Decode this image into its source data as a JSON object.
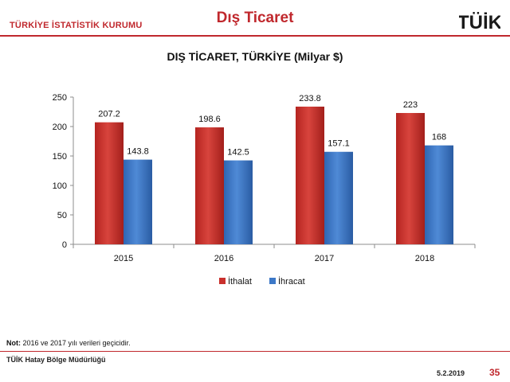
{
  "header": {
    "organization": "TÜRKİYE İSTATİSTİK KURUMU",
    "title": "Dış Ticaret",
    "logo_text": "TÜİK"
  },
  "chart_data": {
    "type": "bar",
    "title": "DIŞ TİCARET, TÜRKİYE (Milyar $)",
    "categories": [
      "2015",
      "2016",
      "2017",
      "2018"
    ],
    "series": [
      {
        "name": "İthalat",
        "values": [
          207.2,
          198.6,
          233.8,
          223
        ],
        "labels": [
          "207.2",
          "198.6",
          "233.8",
          "223"
        ],
        "color": "#c9302c"
      },
      {
        "name": "İhracat",
        "values": [
          143.8,
          142.5,
          157.1,
          168
        ],
        "labels": [
          "143.8",
          "142.5",
          "157.1",
          "168"
        ],
        "color": "#3d78c7"
      }
    ],
    "ylim": [
      0,
      250
    ],
    "yticks": [
      "0",
      "50",
      "100",
      "150",
      "200",
      "250"
    ],
    "legend_position": "bottom",
    "grid": false
  },
  "footer": {
    "note_label": "Not:",
    "note_text": " 2016 ve 2017 yılı verileri geçicidir.",
    "office": "TÜİK Hatay Bölge Müdürlüğü",
    "date": "5.2.2019",
    "page_number": "35"
  }
}
